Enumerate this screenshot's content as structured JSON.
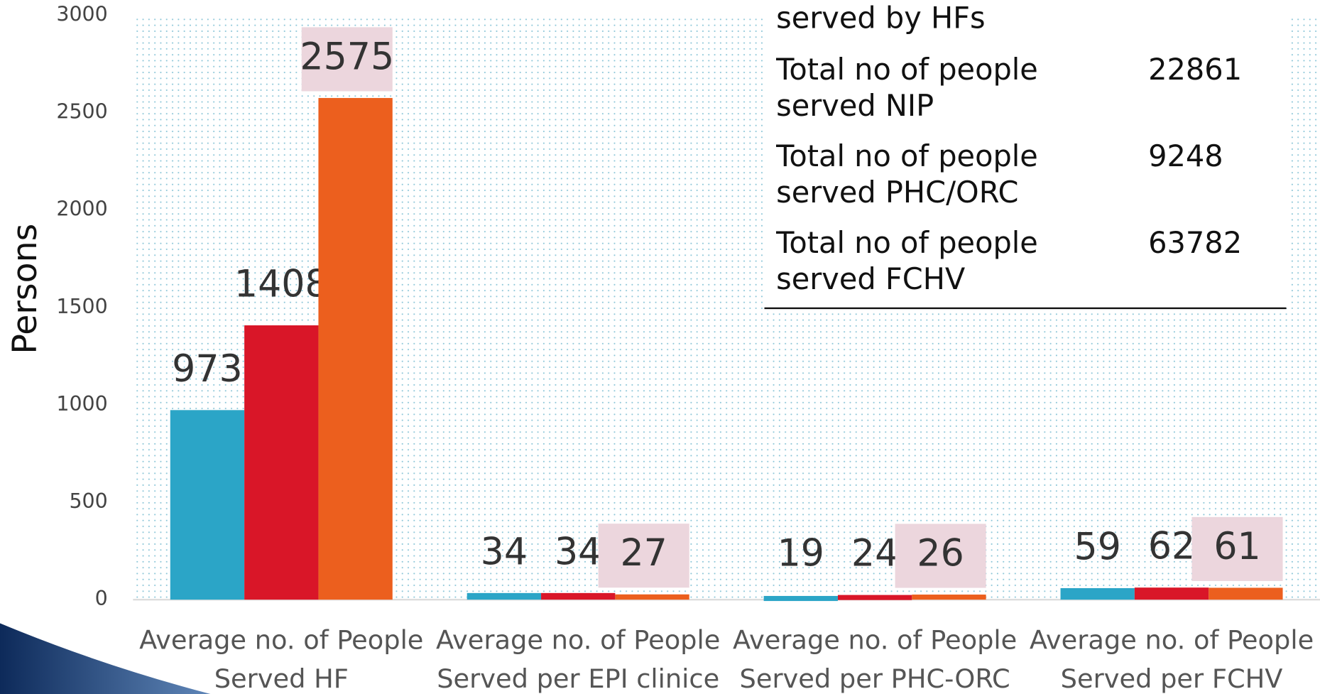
{
  "chart_data": {
    "type": "bar",
    "y_label": "Persons",
    "categories": [
      "Average no. of People\nServed HF",
      "Average no. of People\nServed per EPI clinice",
      "Average no. of People\nServed per PHC-ORC",
      "Average no. of People\nServed per FCHV"
    ],
    "series": [
      {
        "color": "#2ba5c7",
        "values": [
          973,
          34,
          19,
          59
        ]
      },
      {
        "color": "#d91628",
        "values": [
          1408,
          34,
          24,
          62
        ]
      },
      {
        "color": "#ec5f1e",
        "values": [
          2575,
          27,
          26,
          61
        ]
      }
    ],
    "ylim": [
      0,
      3000
    ],
    "yticks": [
      0,
      500,
      1000,
      1500,
      2000,
      2500,
      3000
    ]
  },
  "table": {
    "rows": [
      [
        "served  by HFs"
      ],
      [
        "Total no of people\nserved NIP",
        "22861"
      ],
      [
        "Total no of people\nserved PHC/ORC",
        "9248"
      ],
      [
        "Total no of people\nserved FCHV",
        "63782"
      ]
    ]
  }
}
